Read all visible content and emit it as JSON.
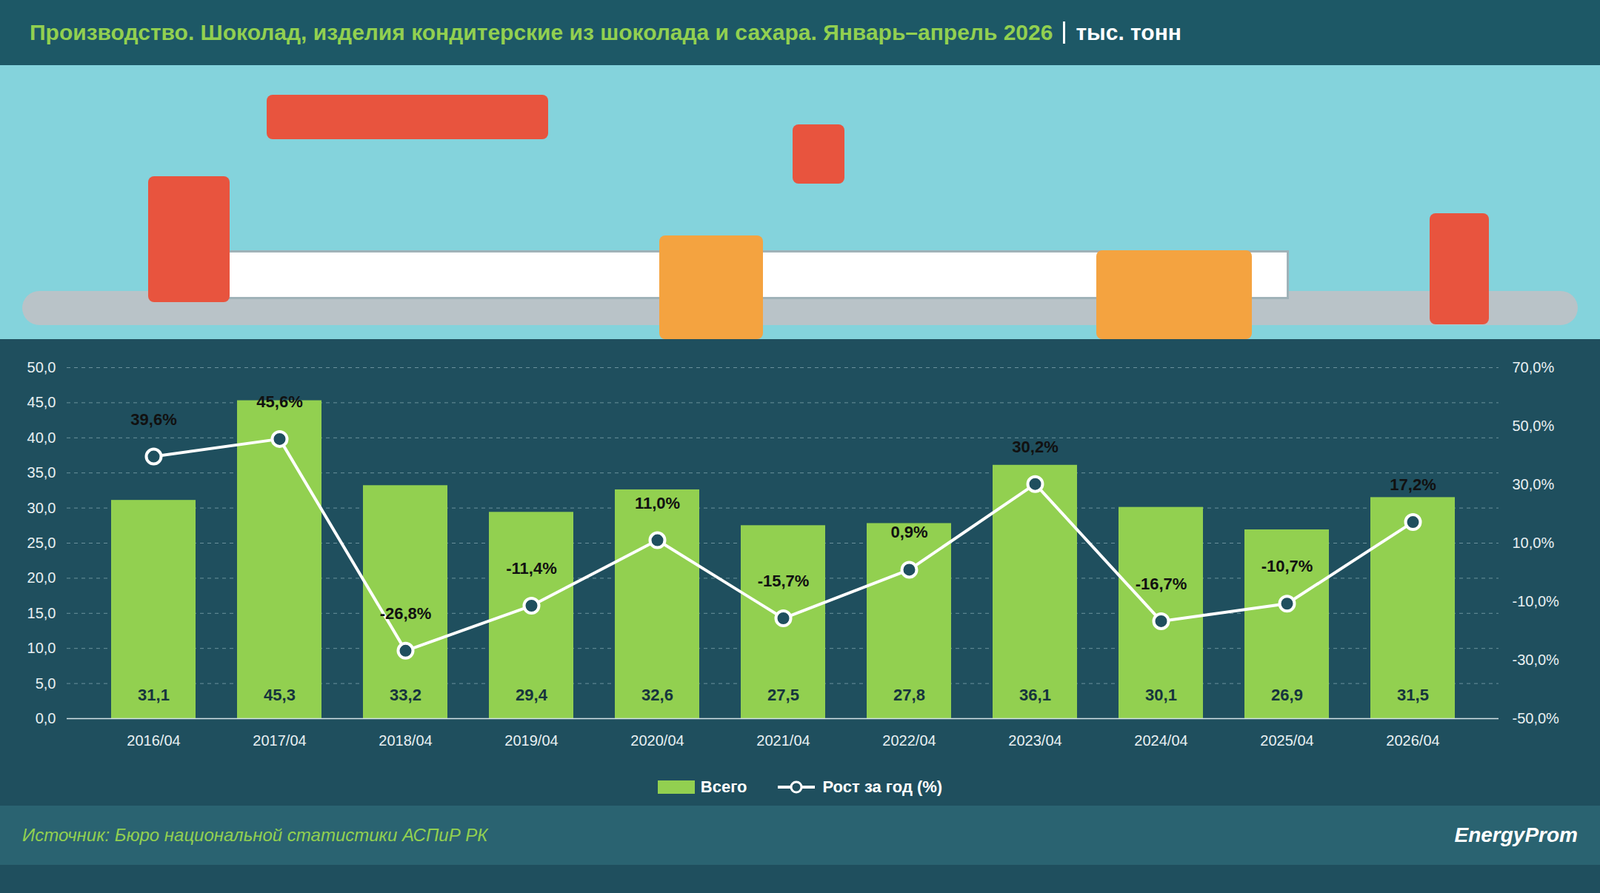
{
  "chart_data": {
    "type": "bar",
    "title": "Производство. Шоколад, изделия кондитерские из шоколада и сахара. Январь–апрель 2026",
    "subtitle": "тыс. тонн",
    "source": "Источник: Бюро национальной статистики АСПиР РК",
    "logo": "EnergyProm",
    "categories": [
      "2016/04",
      "2017/04",
      "2018/04",
      "2019/04",
      "2020/04",
      "2021/04",
      "2022/04",
      "2023/04",
      "2024/04",
      "2025/04",
      "2026/04"
    ],
    "series": [
      {
        "name": "Всего",
        "type": "bar",
        "color": "#92d050",
        "values": [
          31.1,
          45.3,
          33.2,
          29.4,
          32.6,
          27.5,
          27.8,
          36.1,
          30.1,
          26.9,
          31.5
        ],
        "value_labels": [
          "31,1",
          "45,3",
          "33,2",
          "29,4",
          "32,6",
          "27,5",
          "27,8",
          "36,1",
          "30,1",
          "26,9",
          "31,5"
        ]
      },
      {
        "name": "Рост за год (%)",
        "type": "line",
        "axis": "y2",
        "color": "#ffffff",
        "marker": "circle",
        "values": [
          39.6,
          45.6,
          -26.8,
          -11.4,
          11.0,
          -15.7,
          0.9,
          30.2,
          -16.7,
          -10.7,
          17.2
        ],
        "value_labels": [
          "39,6%",
          "45,6%",
          "-26,8%",
          "-11,4%",
          "11,0%",
          "-15,7%",
          "0,9%",
          "30,2%",
          "-16,7%",
          "-10,7%",
          "17,2%"
        ]
      }
    ],
    "ylim": [
      0,
      50
    ],
    "yticks": [
      {
        "value": 0,
        "label": "0,0"
      },
      {
        "value": 5,
        "label": "5,0"
      },
      {
        "value": 10,
        "label": "10,0"
      },
      {
        "value": 15,
        "label": "15,0"
      },
      {
        "value": 20,
        "label": "20,0"
      },
      {
        "value": 25,
        "label": "25,0"
      },
      {
        "value": 30,
        "label": "30,0"
      },
      {
        "value": 35,
        "label": "35,0"
      },
      {
        "value": 40,
        "label": "40,0"
      },
      {
        "value": 45,
        "label": "45,0"
      },
      {
        "value": 50,
        "label": "50,0"
      }
    ],
    "y2lim": [
      -50,
      70
    ],
    "y2ticks": [
      {
        "value": -50,
        "label": "-50,0%"
      },
      {
        "value": -30,
        "label": "-30,0%"
      },
      {
        "value": -10,
        "label": "-10,0%"
      },
      {
        "value": 10,
        "label": "10,0%"
      },
      {
        "value": 30,
        "label": "30,0%"
      },
      {
        "value": 50,
        "label": "50,0%"
      },
      {
        "value": 70,
        "label": "70,0%"
      }
    ],
    "grid": true,
    "data_labels": true,
    "legend": "bottom"
  }
}
